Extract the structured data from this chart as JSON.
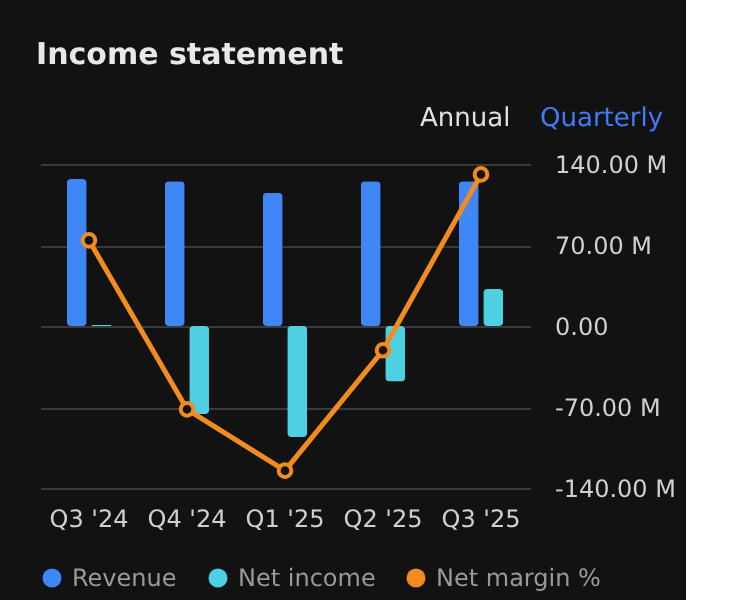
{
  "chart_data": {
    "type": "bar",
    "title": "Income statement",
    "annotations": [
      "Annual",
      "Quarterly"
    ],
    "categories": [
      "Q3 '24",
      "Q4 '24",
      "Q1 '25",
      "Q2 '25",
      "Q3 '25"
    ],
    "series": [
      {
        "name": "Revenue",
        "color": "#3f87f5",
        "values": [
          127,
          125,
          115,
          125,
          125
        ]
      },
      {
        "name": "Net income",
        "color": "#4dd0e1",
        "values": [
          1,
          -76,
          -96,
          -48,
          32
        ]
      },
      {
        "name": "Net margin %",
        "color": "#f28c1e",
        "type": "line",
        "values": [
          74,
          -72,
          -125,
          -21,
          131
        ]
      }
    ],
    "ylim": [
      -140,
      140
    ],
    "yticks": [
      {
        "value": 140,
        "label": "140.00 M"
      },
      {
        "value": 70,
        "label": "70.00 M"
      },
      {
        "value": 0,
        "label": "0.00"
      },
      {
        "value": -70,
        "label": "-70.00 M"
      },
      {
        "value": -140,
        "label": "-140.00 M"
      }
    ],
    "grid": "y",
    "legend": "bottom",
    "marker": "circle"
  }
}
